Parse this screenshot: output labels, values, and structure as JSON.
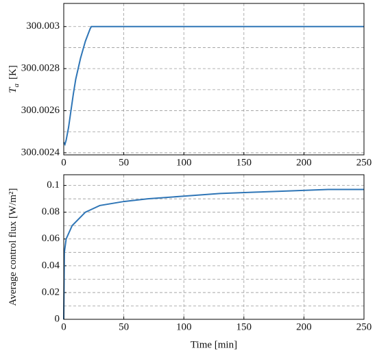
{
  "chart_data": [
    {
      "type": "line",
      "ylabel": {
        "symbol": "T",
        "subscript": "a",
        "unit": "[K]"
      },
      "x": [
        0,
        1,
        2,
        4,
        6,
        8,
        10,
        12,
        14,
        16,
        18,
        20,
        22,
        23,
        250
      ],
      "series": [
        {
          "color": "#2e75b6",
          "values": [
            300.00245,
            300.00244,
            300.00246,
            300.00252,
            300.0026,
            300.00268,
            300.00275,
            300.0028,
            300.00285,
            300.00289,
            300.00293,
            300.00296,
            300.00299,
            300.003,
            300.003
          ]
        }
      ],
      "xlim": [
        0,
        250
      ],
      "xticks": [
        0,
        50,
        100,
        150,
        200,
        250
      ],
      "ylim": [
        300.00239,
        300.00311
      ],
      "yticks": [
        300.0024,
        300.0026,
        300.0028,
        300.003
      ],
      "yminor": [
        300.0025,
        300.0027,
        300.0029
      ],
      "grid": true
    },
    {
      "type": "line",
      "ylabel": {
        "symbol": "Average control flux [W/m²]"
      },
      "xlabel": "Time [min]",
      "x": [
        0,
        0.5,
        2,
        7,
        18,
        30,
        50,
        70,
        100,
        130,
        160,
        190,
        220,
        250
      ],
      "series": [
        {
          "color": "#2e75b6",
          "values": [
            0,
            0.05,
            0.06,
            0.07,
            0.08,
            0.085,
            0.088,
            0.09,
            0.092,
            0.094,
            0.095,
            0.096,
            0.097,
            0.097
          ]
        }
      ],
      "xlim": [
        0,
        250
      ],
      "xticks": [
        0,
        50,
        100,
        150,
        200,
        250
      ],
      "ylim": [
        0,
        0.108
      ],
      "yticks": [
        0,
        0.02,
        0.04,
        0.06,
        0.08,
        0.1
      ],
      "yminor": [
        0.01,
        0.03,
        0.05,
        0.07,
        0.09
      ],
      "grid": true
    }
  ]
}
